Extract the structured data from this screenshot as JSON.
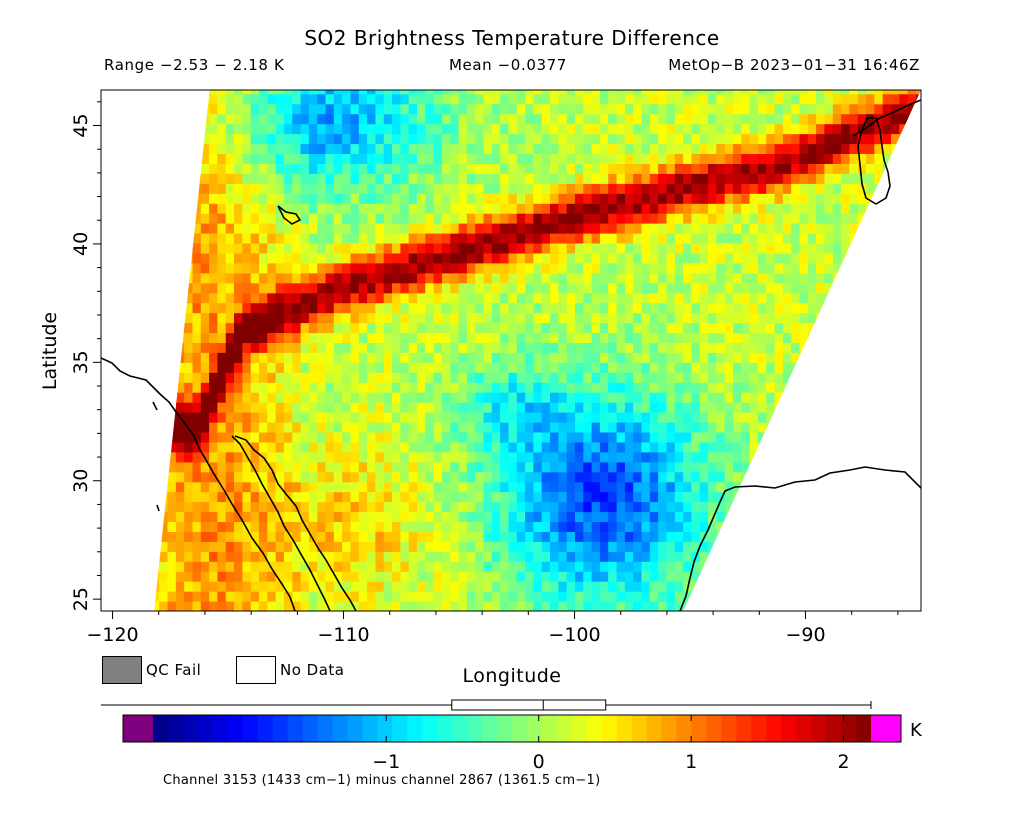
{
  "chart_data": {
    "type": "heatmap",
    "title": "SO2 Brightness Temperature Difference",
    "range_text": "Range −2.53 − 2.18 K",
    "mean_text": "Mean −0.0377",
    "source_text": "MetOp−B 2023−01−31 16:46Z",
    "xlabel": "Longitude",
    "ylabel": "Latitude",
    "xlim": [
      -120.5,
      -85
    ],
    "ylim": [
      24.5,
      46.5
    ],
    "x_ticks": [
      -120,
      -110,
      -100,
      -90
    ],
    "x_tick_labels": [
      "−120",
      "−110",
      "−100",
      "−90"
    ],
    "y_ticks": [
      25,
      30,
      35,
      40,
      45
    ],
    "y_tick_labels": [
      "25",
      "30",
      "35",
      "40",
      "45"
    ],
    "swath_corners": {
      "top_left": [
        -115.8,
        46.5
      ],
      "top_right": [
        -85.0,
        46.5
      ],
      "bottom_left": [
        -118.2,
        24.5
      ],
      "bottom_right": [
        -95.3,
        24.5
      ]
    },
    "plume_track": [
      [
        -116.5,
        32.0
      ],
      [
        -114.5,
        36.2
      ],
      [
        -110,
        38.0
      ],
      [
        -105,
        39.5
      ],
      [
        -101,
        40.7
      ],
      [
        -96,
        42.0
      ],
      [
        -91,
        43.2
      ],
      [
        -86,
        45.3
      ]
    ],
    "plume_peak_value": 2.0,
    "colorbar": {
      "min": -2.53,
      "max": 2.18,
      "ticks": [
        -1,
        0,
        1,
        2
      ],
      "tick_labels": [
        "−1",
        "0",
        "1",
        "2"
      ],
      "unit": "K",
      "box_plot": {
        "whisker_low": -2.3,
        "q1": -0.57,
        "median": 0.03,
        "q3": 0.44,
        "whisker_high": 2.18
      }
    },
    "legend": [
      {
        "label": "QC Fail",
        "color": "#808080"
      },
      {
        "label": "No Data",
        "color": "#ffffff"
      }
    ],
    "footnote": "Channel 3153 (1433 cm−1) minus channel 2867 (1361.5 cm−1)",
    "grid": false
  },
  "colors": {
    "under_range": "#7f007f",
    "over_range": "#ff00ff",
    "qc_fail": "#808080",
    "no_data": "#ffffff"
  }
}
